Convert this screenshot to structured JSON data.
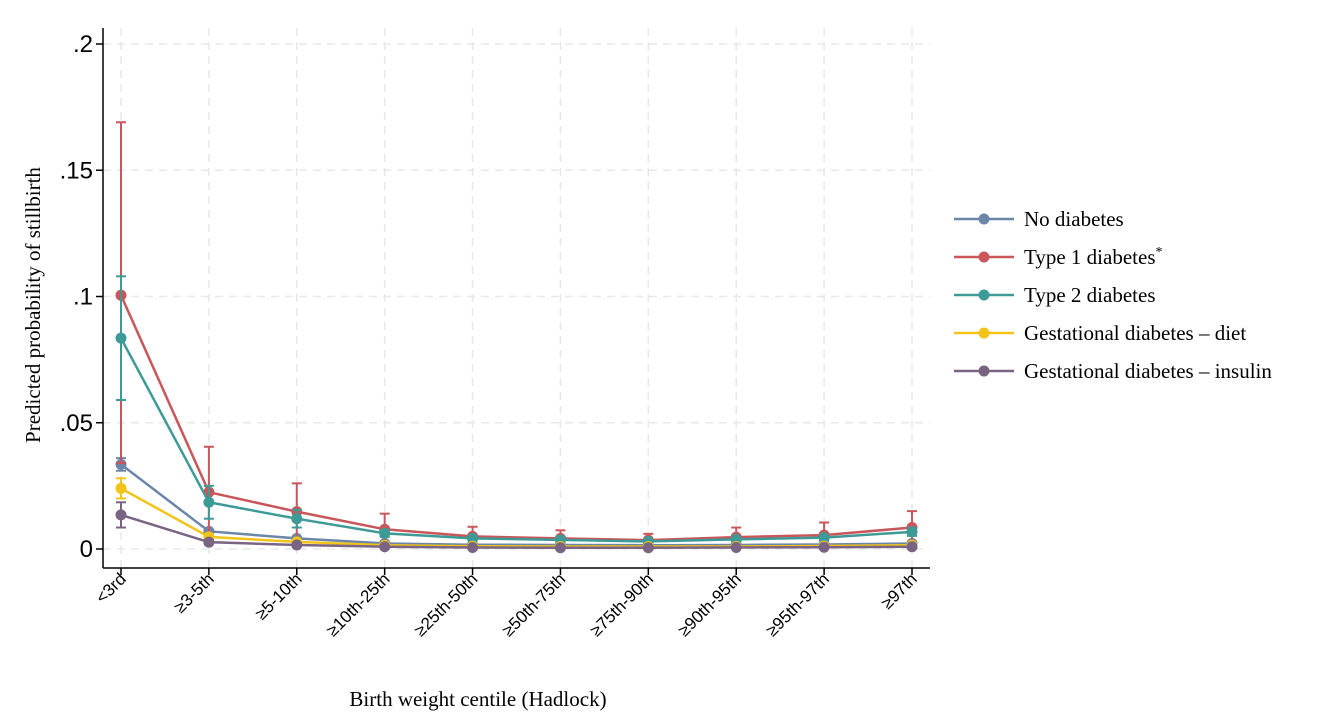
{
  "chart_data": {
    "type": "line",
    "xlabel": "Birth weight centile (Hadlock)",
    "ylabel": "Predicted probability of stillbirth",
    "ylim": [
      0,
      0.2
    ],
    "yticks": [
      {
        "value": 0,
        "label": "0"
      },
      {
        "value": 0.05,
        "label": ".05"
      },
      {
        "value": 0.1,
        "label": ".1"
      },
      {
        "value": 0.15,
        "label": ".15"
      },
      {
        "value": 0.2,
        "label": ".2"
      }
    ],
    "grid": true,
    "legend_position": "right",
    "categories": [
      "<3rd",
      "≥3-5th",
      "≥5-10th",
      "≥10th-25th",
      "≥25th-50th",
      "≥50th-75th",
      "≥75th-90th",
      "≥90th-95th",
      "≥95th-97th",
      "≥97th"
    ],
    "series": [
      {
        "name": "No diabetes",
        "color": "#6C86A8",
        "values": [
          0.0335,
          0.007,
          0.0042,
          0.0022,
          0.0017,
          0.0016,
          0.0015,
          0.0016,
          0.0018,
          0.0022
        ],
        "lower": [
          0.031,
          0.0065,
          0.0039,
          0.0021,
          0.0016,
          0.0015,
          0.0014,
          0.0015,
          0.0016,
          0.002
        ],
        "upper": [
          0.036,
          0.0075,
          0.0045,
          0.0023,
          0.0018,
          0.0017,
          0.0016,
          0.0017,
          0.002,
          0.0024
        ]
      },
      {
        "name": "Type 1 diabetes",
        "name_suffix": "*",
        "color": "#C8565A",
        "values": [
          0.1005,
          0.0225,
          0.0148,
          0.0078,
          0.005,
          0.0042,
          0.0035,
          0.0047,
          0.0055,
          0.0085
        ],
        "lower": [
          0.034,
          0.005,
          0.003,
          0.002,
          0.001,
          0.001,
          0.001,
          0.001,
          0.001,
          0.002
        ],
        "upper": [
          0.169,
          0.0405,
          0.026,
          0.014,
          0.0088,
          0.0074,
          0.006,
          0.0085,
          0.0105,
          0.015
        ]
      },
      {
        "name": "Type 2 diabetes",
        "color": "#3C9A97",
        "values": [
          0.0835,
          0.0185,
          0.012,
          0.0062,
          0.0042,
          0.0036,
          0.003,
          0.0038,
          0.0045,
          0.0068
        ],
        "lower": [
          0.059,
          0.012,
          0.0085,
          0.0048,
          0.0034,
          0.0029,
          0.0024,
          0.003,
          0.0034,
          0.0052
        ],
        "upper": [
          0.108,
          0.025,
          0.0155,
          0.0076,
          0.005,
          0.0043,
          0.0036,
          0.0046,
          0.0056,
          0.0084
        ]
      },
      {
        "name": "Gestational diabetes – diet",
        "color": "#F2C41A",
        "values": [
          0.024,
          0.0048,
          0.0028,
          0.0015,
          0.0011,
          0.001,
          0.001,
          0.001,
          0.0012,
          0.0015
        ],
        "lower": [
          0.02,
          0.0038,
          0.0022,
          0.0012,
          0.0009,
          0.0008,
          0.0008,
          0.0008,
          0.0009,
          0.0011
        ],
        "upper": [
          0.028,
          0.0058,
          0.0034,
          0.0018,
          0.0013,
          0.0012,
          0.0012,
          0.0012,
          0.0015,
          0.0019
        ]
      },
      {
        "name": "Gestational diabetes – insulin",
        "color": "#7A6484",
        "values": [
          0.0135,
          0.0027,
          0.0016,
          0.0009,
          0.0006,
          0.0005,
          0.0005,
          0.0006,
          0.0007,
          0.0009
        ],
        "lower": [
          0.0085,
          0.0018,
          0.0011,
          0.0006,
          0.0004,
          0.0003,
          0.0003,
          0.0004,
          0.0004,
          0.0005
        ],
        "upper": [
          0.0185,
          0.0036,
          0.0021,
          0.0012,
          0.0008,
          0.0007,
          0.0007,
          0.0008,
          0.001,
          0.0013
        ]
      }
    ]
  }
}
